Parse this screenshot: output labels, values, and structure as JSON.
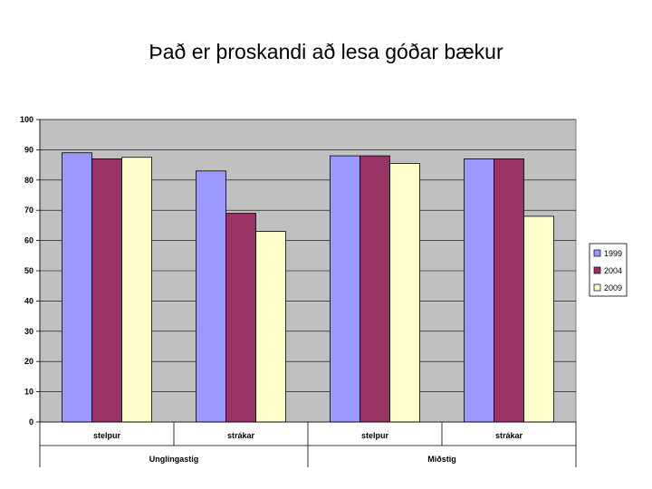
{
  "title": "Það er þroskandi að lesa góðar bækur",
  "chart_data": {
    "type": "bar",
    "title": "Það er þroskandi að lesa góðar bækur",
    "groups": [
      {
        "label": "Unglingastig",
        "categories": [
          "stelpur",
          "strákar"
        ]
      },
      {
        "label": "Miðstig",
        "categories": [
          "stelpur",
          "strákar"
        ]
      }
    ],
    "categories": [
      "stelpur",
      "strákar",
      "stelpur",
      "strákar"
    ],
    "series": [
      {
        "name": "1999",
        "color": "#9999ff",
        "values": [
          89,
          83,
          88,
          87
        ]
      },
      {
        "name": "2004",
        "color": "#993366",
        "values": [
          87,
          69,
          88,
          87
        ]
      },
      {
        "name": "2009",
        "color": "#ffffcc",
        "values": [
          87.5,
          63,
          85.5,
          68
        ]
      }
    ],
    "yticks": [
      "0",
      "10",
      "20",
      "30",
      "40",
      "50",
      "60",
      "70",
      "80",
      "90",
      "100"
    ],
    "ylim": [
      0,
      100
    ],
    "grid": true,
    "plot_background": "#c0c0c0",
    "legend": "right"
  }
}
